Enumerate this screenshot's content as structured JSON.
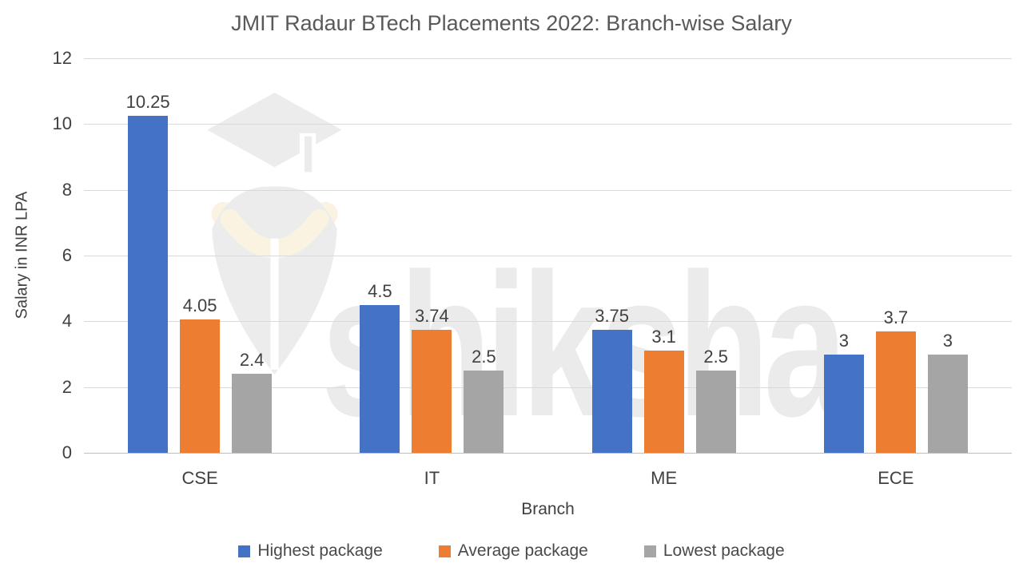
{
  "title": "JMIT Radaur BTech Placements 2022: Branch-wise Salary",
  "watermark": {
    "text": "shiksha"
  },
  "y_axis": {
    "label": "Salary in INR LPA"
  },
  "x_axis": {
    "label": "Branch"
  },
  "colors": {
    "highest": "#4472C4",
    "average": "#ED7D31",
    "lowest": "#A5A5A5",
    "gridline": "#D9D9D9",
    "axis_line": "#BFBFBF",
    "title_text": "#595959",
    "label_text": "#404040",
    "watermark": "#EBEBEB"
  },
  "chart_data": {
    "type": "bar",
    "title": "JMIT Radaur BTech Placements 2022: Branch-wise Salary",
    "categories": [
      "CSE",
      "IT",
      "ME",
      "ECE"
    ],
    "series": [
      {
        "name": "Highest package",
        "color": "#4472C4",
        "values": [
          10.25,
          4.5,
          3.75,
          3
        ]
      },
      {
        "name": "Average package",
        "color": "#ED7D31",
        "values": [
          4.05,
          3.74,
          3.1,
          3.7
        ]
      },
      {
        "name": "Lowest package",
        "color": "#A5A5A5",
        "values": [
          2.4,
          2.5,
          2.5,
          3
        ]
      }
    ],
    "xlabel": "Branch",
    "ylabel": "Salary in INR LPA",
    "ylim": [
      0,
      12
    ],
    "yticks": [
      0,
      2,
      4,
      6,
      8,
      10,
      12
    ],
    "grid": true,
    "data_labels": true,
    "legend_position": "bottom"
  }
}
